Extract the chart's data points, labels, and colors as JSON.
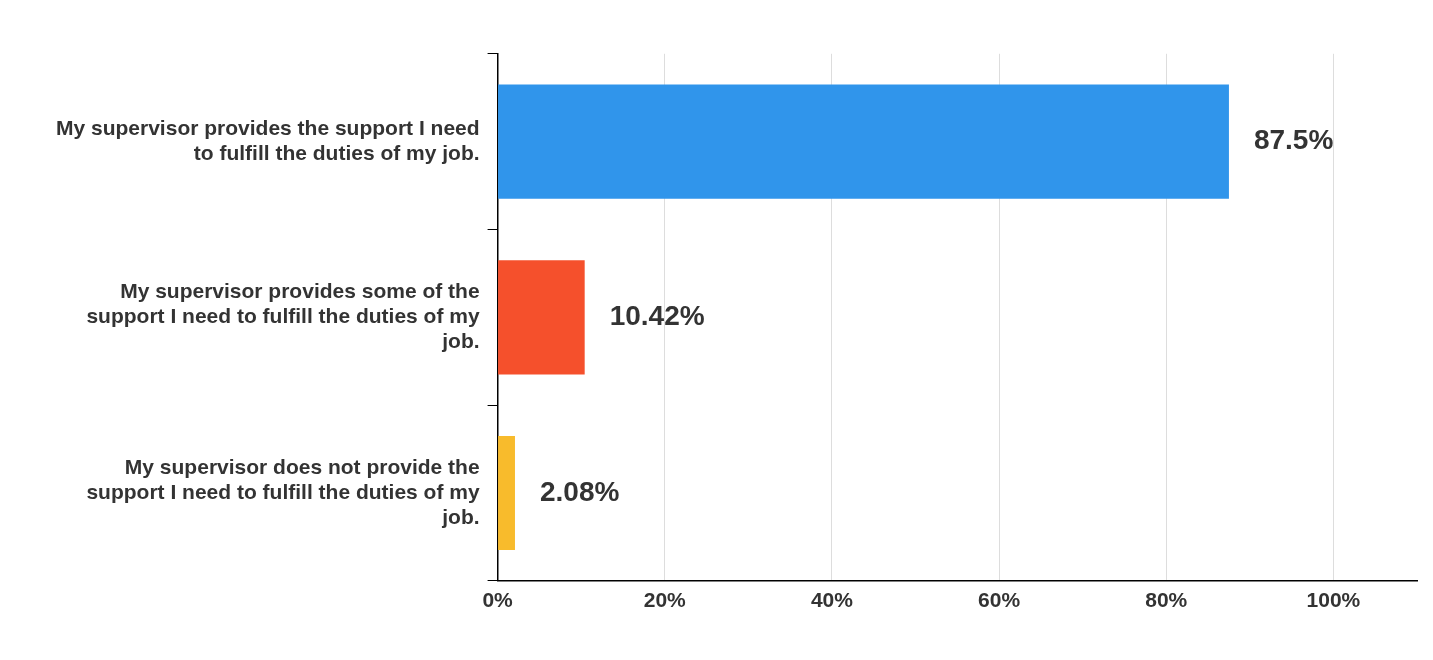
{
  "chart_data": {
    "type": "bar",
    "orientation": "horizontal",
    "categories": [
      "My supervisor provides the support I need to fulfill the duties of my job.",
      "My supervisor provides some of the support I need to fulfill the duties of my job.",
      "My supervisor does not provide the support I need to fulfill the duties of my job."
    ],
    "values": [
      87.5,
      10.42,
      2.08
    ],
    "colors": [
      "#3095eb",
      "#f5502c",
      "#f8bb2c"
    ],
    "value_labels": [
      "87.5%",
      "10.42%",
      "2.08%"
    ],
    "xlim": [
      0,
      110
    ],
    "xticks": [
      {
        "value": 0,
        "label": "0%"
      },
      {
        "value": 20,
        "label": "20%"
      },
      {
        "value": 40,
        "label": "40%"
      },
      {
        "value": 60,
        "label": "60%"
      },
      {
        "value": 80,
        "label": "80%"
      },
      {
        "value": 100,
        "label": "100%"
      }
    ],
    "grid": "x",
    "legend": false
  }
}
